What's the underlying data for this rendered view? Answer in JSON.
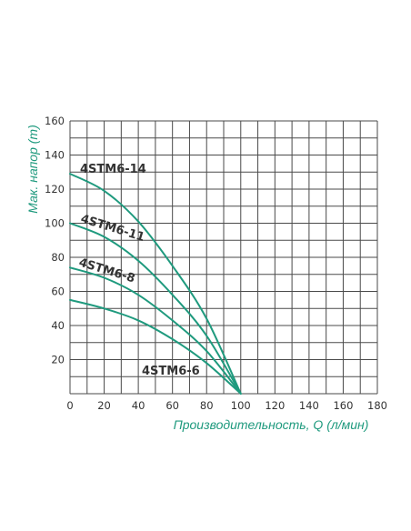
{
  "chart_data": {
    "type": "line",
    "xlabel": "Производительность, Q (л/мин)",
    "ylabel": "Мак. напор (m)",
    "xlim": [
      0,
      180
    ],
    "ylim": [
      0,
      160
    ],
    "x_ticks": [
      "0",
      "20",
      "40",
      "60",
      "80",
      "100",
      "120",
      "140",
      "160",
      "180"
    ],
    "y_ticks": [
      "20",
      "40",
      "60",
      "80",
      "100",
      "120",
      "140",
      "160"
    ],
    "grid": true,
    "legend": "none",
    "series": [
      {
        "name": "4STM6-14",
        "x": [
          0,
          20,
          40,
          60,
          80,
          100
        ],
        "y": [
          129,
          119,
          101,
          75,
          44,
          0
        ]
      },
      {
        "name": "4STM6-11",
        "x": [
          0,
          20,
          40,
          60,
          80,
          100
        ],
        "y": [
          100,
          92,
          78,
          58,
          34,
          0
        ]
      },
      {
        "name": "4STM6-8",
        "x": [
          0,
          20,
          40,
          60,
          80,
          100
        ],
        "y": [
          74,
          68,
          58,
          43,
          25,
          0
        ]
      },
      {
        "name": "4STM6-6",
        "x": [
          0,
          20,
          40,
          60,
          80,
          100
        ],
        "y": [
          55,
          50,
          43,
          32,
          18,
          0
        ]
      }
    ]
  },
  "colors": {
    "curve": "#1f9a7e",
    "grid": "#4a4a4a",
    "axis_title": "#1f9a7e",
    "label": "#333333"
  }
}
